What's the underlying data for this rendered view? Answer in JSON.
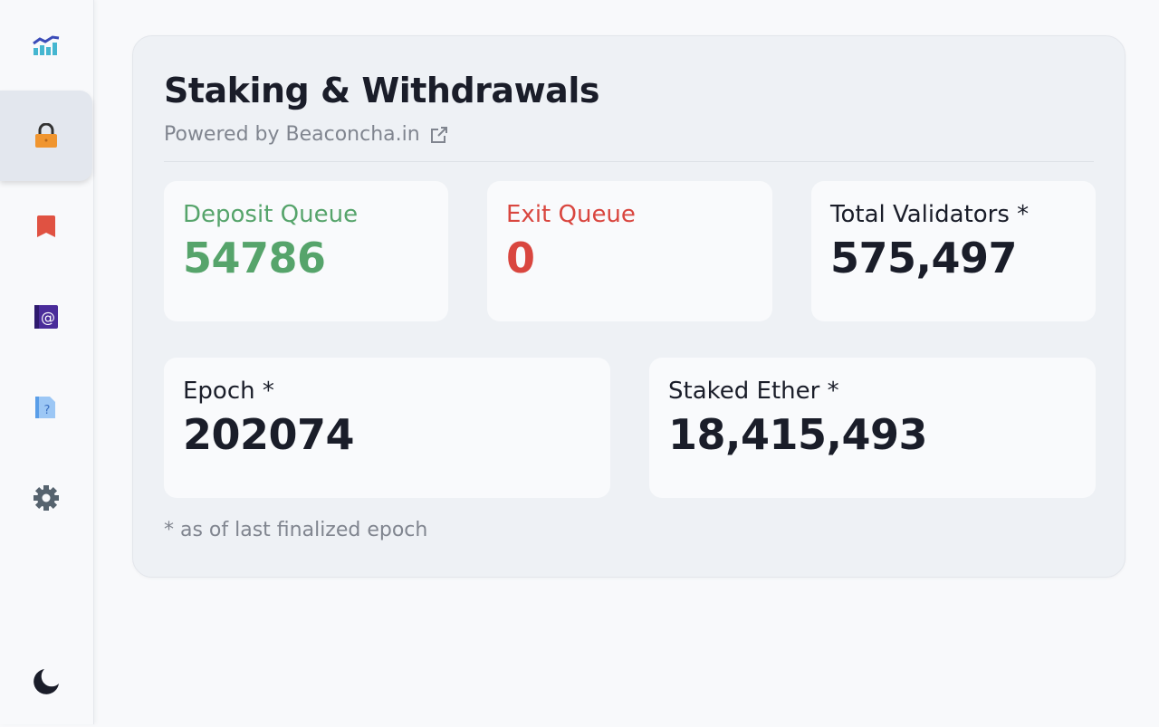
{
  "sidebar": {
    "items": [
      {
        "name": "analytics",
        "icon": "chart-icon"
      },
      {
        "name": "staking",
        "icon": "lock-icon",
        "active": true
      },
      {
        "name": "bookmarks",
        "icon": "bookmark-icon"
      },
      {
        "name": "contact",
        "icon": "at-icon"
      },
      {
        "name": "help",
        "icon": "help-doc-icon"
      },
      {
        "name": "settings",
        "icon": "gear-icon"
      },
      {
        "name": "theme",
        "icon": "moon-icon"
      }
    ]
  },
  "header": {
    "title": "Staking & Withdrawals",
    "powered_by": "Powered by Beaconcha.in"
  },
  "stats": {
    "deposit_queue": {
      "label": "Deposit Queue",
      "value": "54786",
      "color": "#56a46b"
    },
    "exit_queue": {
      "label": "Exit Queue",
      "value": "0",
      "color": "#d9463f"
    },
    "total_validators": {
      "label": "Total Validators *",
      "value": "575,497"
    },
    "epoch": {
      "label": "Epoch *",
      "value": "202074"
    },
    "staked_ether": {
      "label": "Staked Ether *",
      "value": "18,415,493"
    }
  },
  "footnote": "* as of last finalized epoch"
}
